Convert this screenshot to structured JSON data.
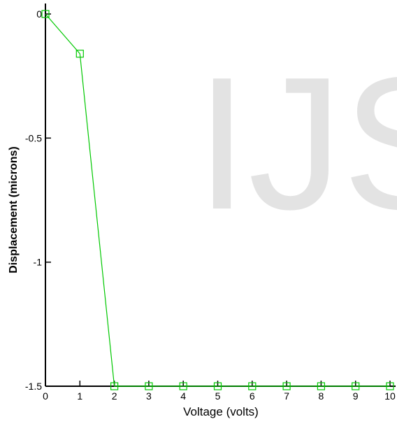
{
  "chart_data": {
    "type": "line",
    "watermark": "IJS",
    "xlabel": "Voltage (volts)",
    "ylabel": "Displacement (microns)",
    "x": [
      0,
      1,
      2,
      3,
      4,
      5,
      6,
      7,
      8,
      9,
      10
    ],
    "series": [
      {
        "name": "Displacement",
        "color": "#00c800",
        "values": [
          0,
          -0.16,
          -1.5,
          -1.5,
          -1.5,
          -1.5,
          -1.5,
          -1.5,
          -1.5,
          -1.5,
          -1.5
        ]
      }
    ],
    "xlim": [
      0,
      10
    ],
    "xticks": [
      0,
      1,
      2,
      3,
      4,
      5,
      6,
      7,
      8,
      9,
      10
    ],
    "ylim": [
      -1.5,
      0
    ],
    "yticks": [
      0,
      -0.5,
      -1,
      -1.5
    ],
    "marker": "square"
  }
}
